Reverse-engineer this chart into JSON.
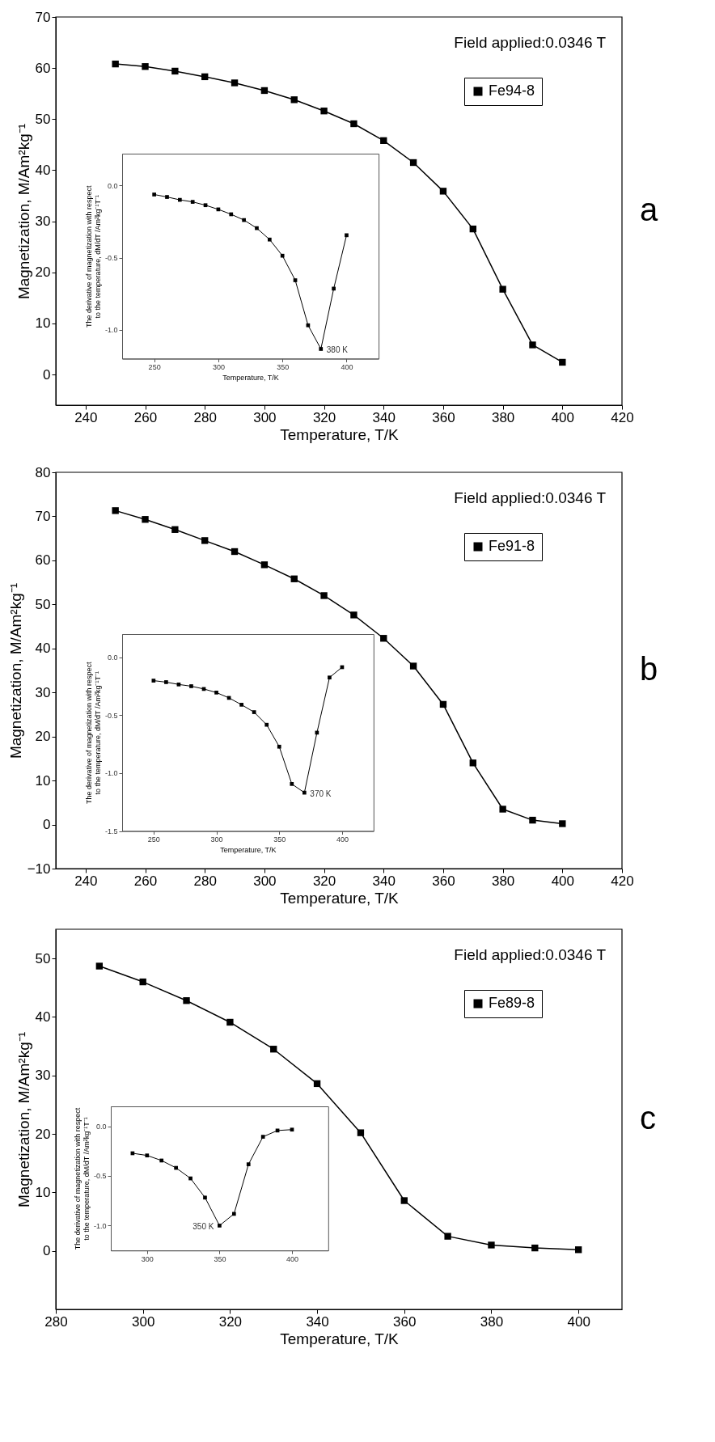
{
  "chart_data": [
    {
      "type": "line",
      "xlabel": "Temperature, T/K",
      "ylabel": "Magnetization, M/Am²kg⁻¹",
      "annotations": [
        "Field applied:0.0346 T",
        "a"
      ],
      "xlim": [
        230,
        420
      ],
      "xticks": [
        240,
        260,
        280,
        300,
        320,
        340,
        360,
        380,
        400,
        420
      ],
      "ylim": [
        -6,
        70
      ],
      "yticks": [
        0,
        10,
        20,
        30,
        40,
        50,
        60,
        70
      ],
      "grid": false,
      "legend": "top right",
      "marker": "square",
      "line_style": "solid",
      "x": [
        250,
        260,
        270,
        280,
        290,
        300,
        310,
        320,
        330,
        340,
        350,
        360,
        370,
        380,
        390,
        400
      ],
      "series": [
        {
          "name": "Fe94-8",
          "color": "#000000",
          "values": [
            60.8,
            60.3,
            59.4,
            58.3,
            57.1,
            55.6,
            53.8,
            51.6,
            49.1,
            45.8,
            41.5,
            35.9,
            28.5,
            16.7,
            5.8,
            2.4
          ]
        }
      ]
    },
    {
      "type": "line",
      "xlabel": "Temperature, T/K",
      "ylabel": "The derivative of magnetization with respect to the temperature, dM/dT /Am²kg⁻¹T⁻¹",
      "annotations": [
        {
          "text": "380 K",
          "x": 380,
          "y": -1.133
        }
      ],
      "xlim": [
        225,
        425
      ],
      "xticks": [
        250,
        300,
        350,
        400
      ],
      "ylim": [
        -1.2,
        0.22
      ],
      "yticks": [
        {
          "value": -1.0,
          "label": "-1.0"
        },
        {
          "value": -0.5,
          "label": "-0.5"
        },
        {
          "value": 0,
          "label": "0.0"
        }
      ],
      "grid": false,
      "marker": "square",
      "line_style": "solid",
      "x": [
        250,
        260,
        270,
        280,
        290,
        300,
        310,
        320,
        330,
        340,
        350,
        360,
        370,
        380,
        390,
        400
      ],
      "series": [
        {
          "color": "#000000",
          "values": [
            -0.063,
            -0.08,
            -0.1,
            -0.114,
            -0.137,
            -0.166,
            -0.2,
            -0.24,
            -0.296,
            -0.375,
            -0.487,
            -0.657,
            -0.969,
            -1.133,
            -0.715,
            -0.345
          ]
        }
      ]
    },
    {
      "type": "line",
      "xlabel": "Temperature, T/K",
      "ylabel": "Magnetization, M/Am²kg⁻¹",
      "annotations": [
        "Field applied:0.0346 T",
        "b"
      ],
      "xlim": [
        230,
        420
      ],
      "xticks": [
        240,
        260,
        280,
        300,
        320,
        340,
        360,
        380,
        400,
        420
      ],
      "ylim": [
        -10,
        80
      ],
      "yticks": [
        -10,
        0,
        10,
        20,
        30,
        40,
        50,
        60,
        70,
        80
      ],
      "grid": false,
      "legend": "top right",
      "marker": "square",
      "line_style": "solid",
      "x": [
        250,
        260,
        270,
        280,
        290,
        300,
        310,
        320,
        330,
        340,
        350,
        360,
        370,
        380,
        390,
        400
      ],
      "series": [
        {
          "name": "Fe91-8",
          "color": "#000000",
          "values": [
            71.3,
            69.3,
            67.0,
            64.5,
            62.0,
            59.0,
            55.8,
            52.0,
            47.6,
            42.3,
            36.0,
            27.3,
            14.0,
            3.5,
            1.0,
            0.2
          ]
        }
      ]
    },
    {
      "type": "line",
      "xlabel": "Temperature, T/K",
      "ylabel": "The derivative of magnetization with respect to the temperature, dM/dT /Am²kg⁻¹T⁻¹",
      "annotations": [
        {
          "text": "370 K",
          "x": 370,
          "y": -1.169
        }
      ],
      "xlim": [
        225,
        425
      ],
      "xticks": [
        250,
        300,
        350,
        400
      ],
      "ylim": [
        -1.5,
        0.2
      ],
      "yticks": [
        {
          "value": -1.5,
          "label": "-1.5"
        },
        {
          "value": -1.0,
          "label": "-1.0"
        },
        {
          "value": -0.5,
          "label": "-0.5"
        },
        {
          "value": 0,
          "label": "0.0"
        }
      ],
      "grid": false,
      "marker": "square",
      "line_style": "solid",
      "x": [
        250,
        260,
        270,
        280,
        290,
        300,
        310,
        320,
        330,
        340,
        350,
        360,
        370,
        380,
        390,
        400
      ],
      "series": [
        {
          "color": "#000000",
          "values": [
            -0.202,
            -0.215,
            -0.235,
            -0.25,
            -0.274,
            -0.305,
            -0.351,
            -0.41,
            -0.474,
            -0.583,
            -0.772,
            -1.094,
            -1.169,
            -0.651,
            -0.175,
            -0.086
          ]
        }
      ]
    },
    {
      "type": "line",
      "xlabel": "Temperature, T/K",
      "ylabel": "Magnetization, M/Am²kg⁻¹",
      "annotations": [
        "Field applied:0.0346 T",
        "c"
      ],
      "xlim": [
        280,
        410
      ],
      "xticks": [
        280,
        300,
        320,
        340,
        360,
        380,
        400
      ],
      "ylim": [
        -10,
        55
      ],
      "yticks": [
        0,
        10,
        20,
        30,
        40,
        50
      ],
      "grid": false,
      "legend": "top right",
      "marker": "square",
      "line_style": "solid",
      "x": [
        290,
        300,
        310,
        320,
        330,
        340,
        350,
        360,
        370,
        380,
        390,
        400
      ],
      "series": [
        {
          "name": "Fe89-8",
          "color": "#000000",
          "values": [
            48.7,
            46.0,
            42.8,
            39.1,
            34.5,
            28.6,
            20.2,
            8.6,
            2.5,
            1.0,
            0.5,
            0.2
          ]
        }
      ]
    },
    {
      "type": "line",
      "ylabel": "The derivative of magnetization with respect to the temperature, dM/dT /Am²kg⁻¹T⁻¹",
      "annotations": [
        {
          "text": "350 K",
          "x": 350,
          "y": -1.0
        }
      ],
      "xlim": [
        275,
        425
      ],
      "xticks": [
        300,
        350,
        400
      ],
      "ylim": [
        -1.25,
        0.2
      ],
      "yticks": [
        {
          "value": -1.0,
          "label": "-1.0"
        },
        {
          "value": -0.5,
          "label": "-0.5"
        },
        {
          "value": 0,
          "label": "0.0"
        }
      ],
      "grid": false,
      "marker": "square",
      "line_style": "solid",
      "x": [
        290,
        300,
        310,
        320,
        330,
        340,
        350,
        360,
        370,
        380,
        390,
        400
      ],
      "series": [
        {
          "color": "#000000",
          "values": [
            -0.272,
            -0.294,
            -0.345,
            -0.419,
            -0.525,
            -0.718,
            -1.0,
            -0.882,
            -0.383,
            -0.106,
            -0.043,
            -0.034
          ]
        }
      ]
    }
  ]
}
